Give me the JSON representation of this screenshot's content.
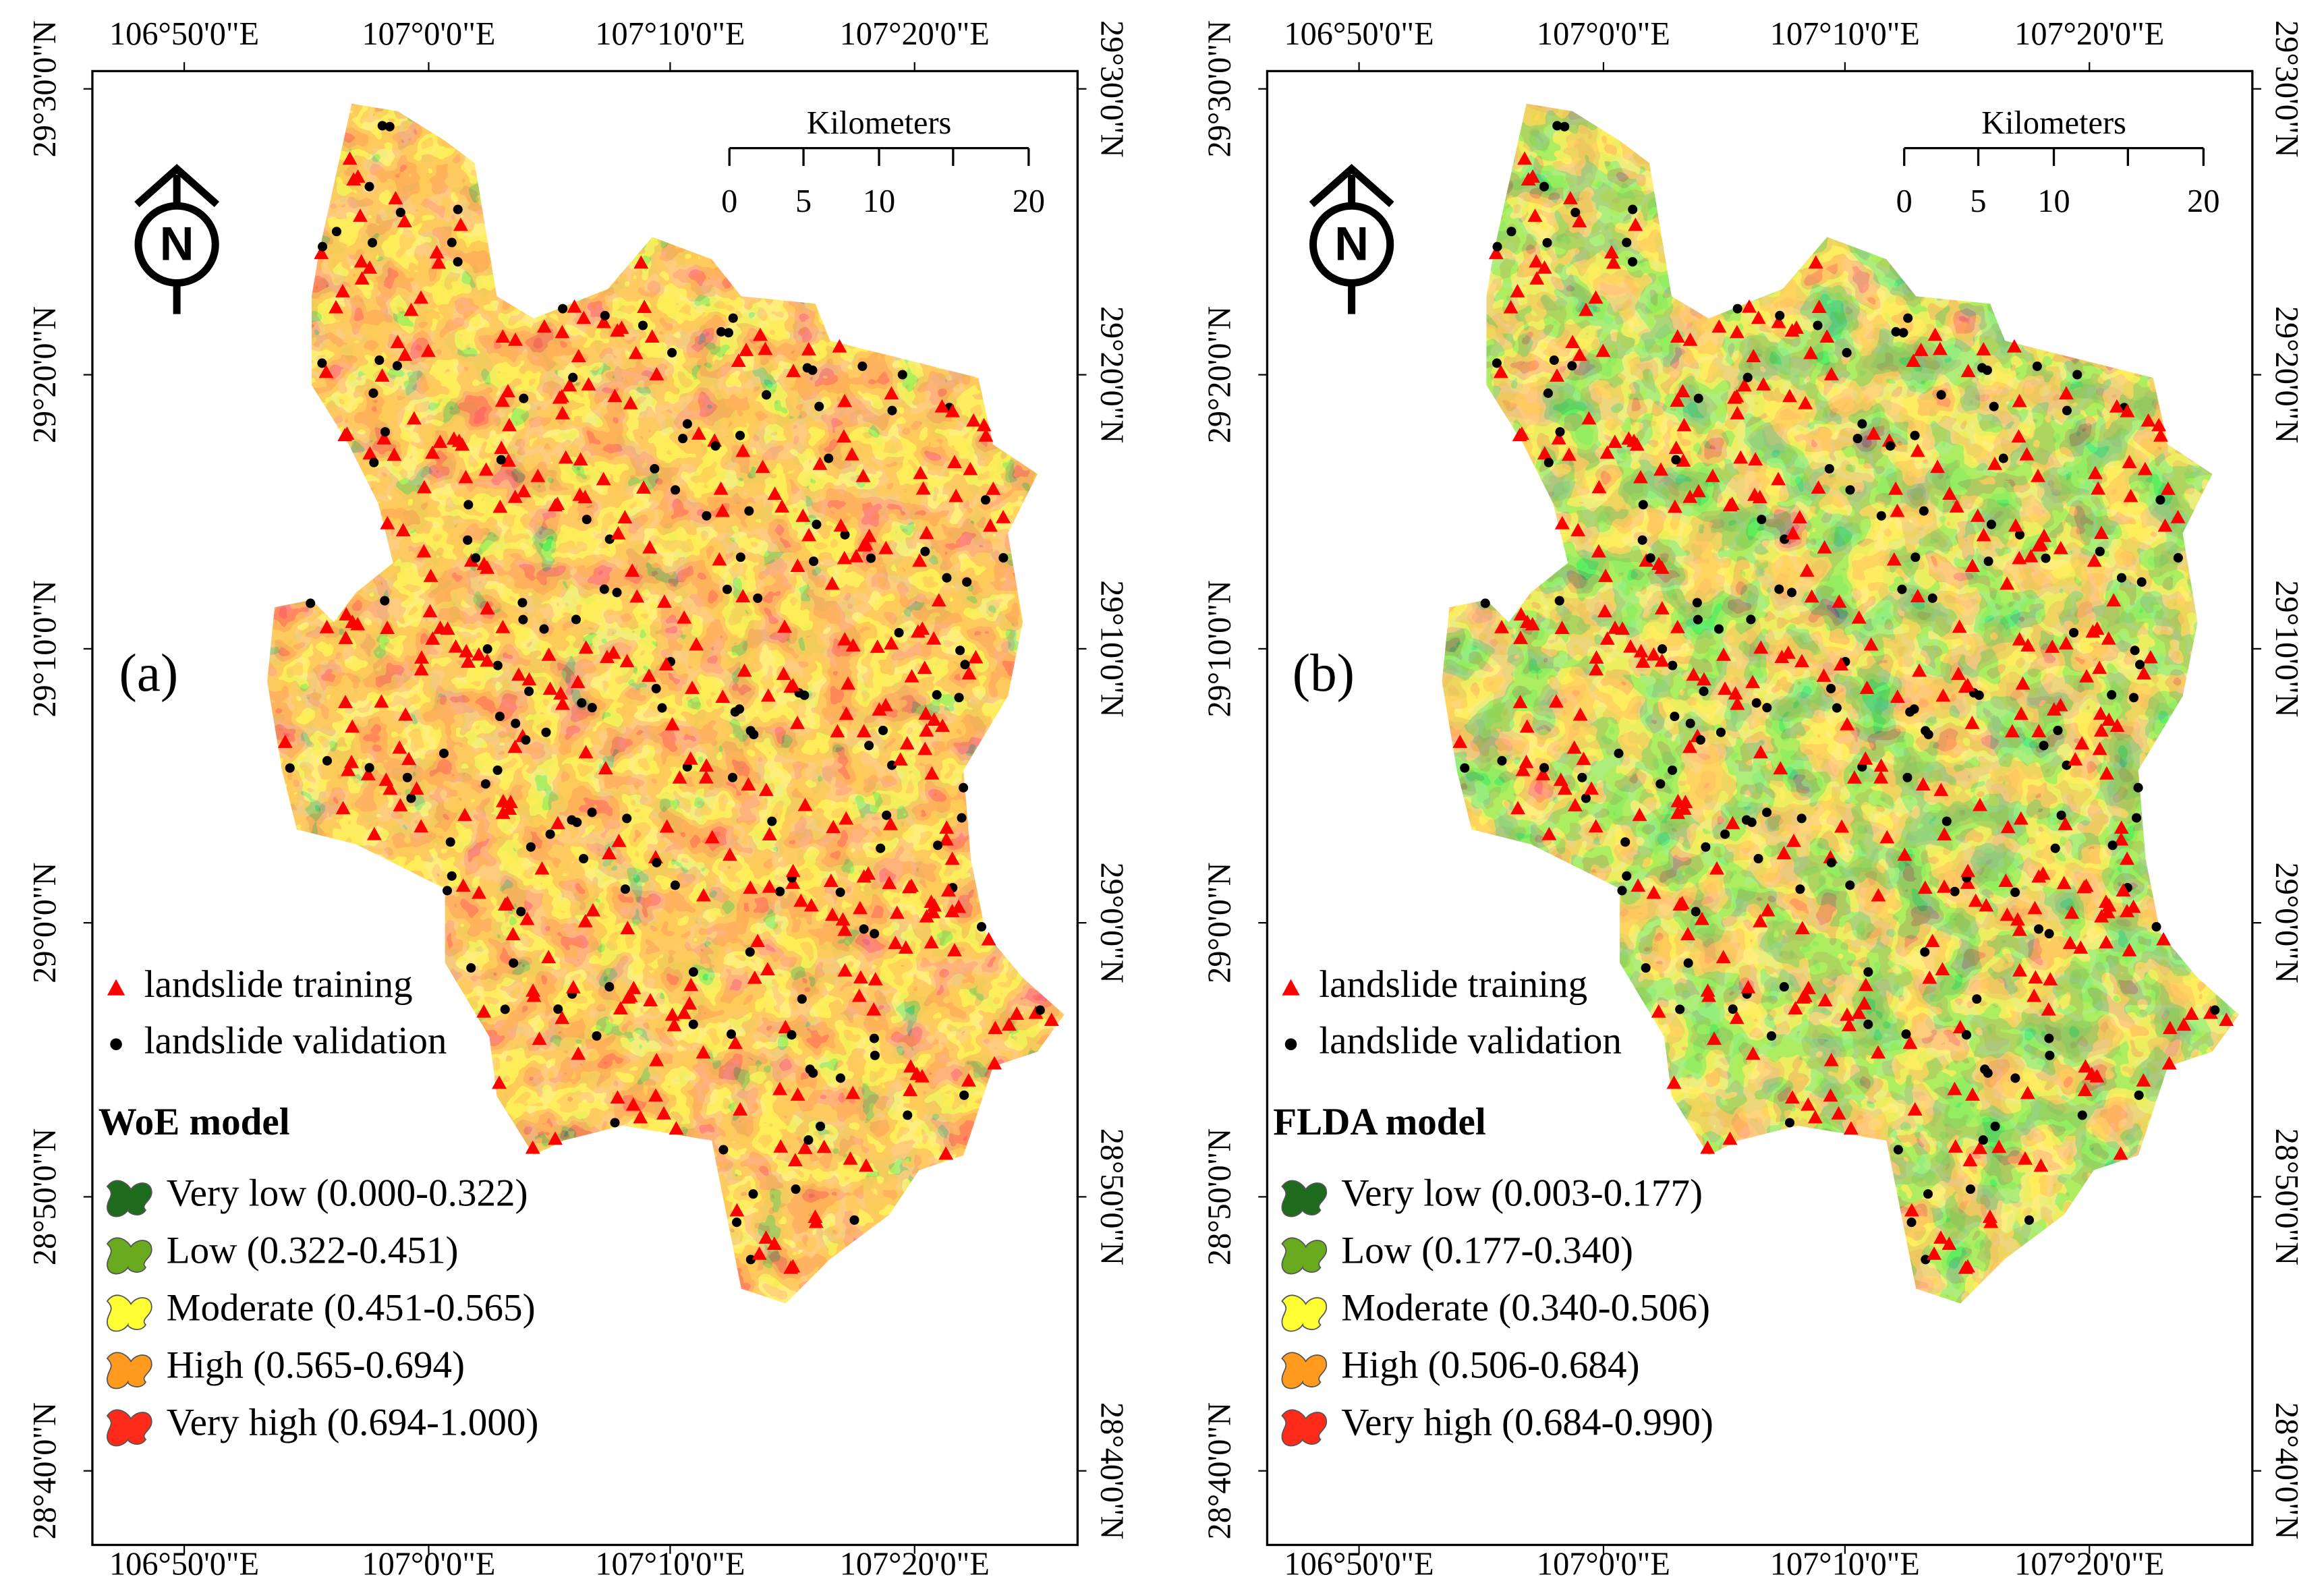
{
  "axes": {
    "lon_ticks": [
      "106°50'0\"E",
      "107°0'0\"E",
      "107°10'0\"E",
      "107°20'0\"E"
    ],
    "lat_ticks": [
      "29°30'0\"N",
      "29°20'0\"N",
      "29°10'0\"N",
      "29°0'0\"N",
      "28°50'0\"N",
      "28°40'0\"N"
    ]
  },
  "panels": [
    {
      "label": "(a)",
      "model": "WoE model",
      "north": "N",
      "scale": {
        "title": "Kilometers",
        "ticks": [
          "0",
          "5",
          "10",
          "20"
        ]
      },
      "points": [
        {
          "label": "landslide training",
          "color": "#ff0000"
        },
        {
          "label": "landslide validation",
          "color": "#000000"
        }
      ],
      "legend": [
        {
          "label": "Very low (0.000-0.322)",
          "color": "#1e6b1e"
        },
        {
          "label": "Low (0.322-0.451)",
          "color": "#6aaa1e"
        },
        {
          "label": "Moderate (0.451-0.565)",
          "color": "#ffff33"
        },
        {
          "label": "High (0.565-0.694)",
          "color": "#ff9a1e"
        },
        {
          "label": "Very high (0.694-1.000)",
          "color": "#ff2a1a"
        }
      ]
    },
    {
      "label": "(b)",
      "model": "FLDA model",
      "north": "N",
      "scale": {
        "title": "Kilometers",
        "ticks": [
          "0",
          "5",
          "10",
          "20"
        ]
      },
      "points": [
        {
          "label": "landslide training",
          "color": "#ff0000"
        },
        {
          "label": "landslide validation",
          "color": "#000000"
        }
      ],
      "legend": [
        {
          "label": "Very low (0.003-0.177)",
          "color": "#1e6b1e"
        },
        {
          "label": "Low (0.177-0.340)",
          "color": "#6aaa1e"
        },
        {
          "label": "Moderate (0.340-0.506)",
          "color": "#ffff33"
        },
        {
          "label": "High (0.506-0.684)",
          "color": "#ff9a1e"
        },
        {
          "label": "Very high (0.684-0.990)",
          "color": "#ff2a1a"
        }
      ]
    }
  ]
}
